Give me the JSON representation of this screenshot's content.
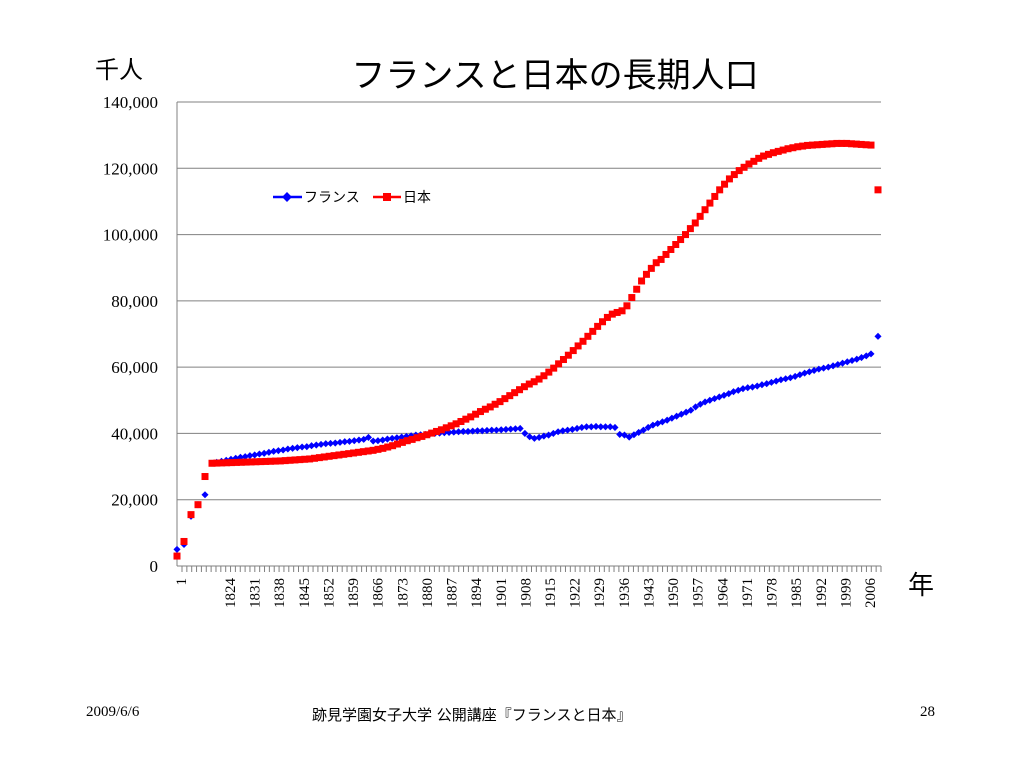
{
  "slide": {
    "unit_label": "千人",
    "year_label": "年",
    "footer_date": "2009/6/6",
    "footer_center": "跡見学園女子大学 公開講座『フランスと日本』",
    "page_number": "28"
  },
  "chart_data": {
    "type": "scatter",
    "title": "フランスと日本の長期人口",
    "ylim": [
      0,
      140000
    ],
    "yticks": [
      0,
      20000,
      40000,
      60000,
      80000,
      100000,
      120000,
      140000
    ],
    "ytick_labels": [
      "0",
      "20,000",
      "40,000",
      "60,000",
      "80,000",
      "100,000",
      "120,000",
      "140,000"
    ],
    "xtick_labels": [
      "1",
      "1824",
      "1831",
      "1838",
      "1845",
      "1852",
      "1859",
      "1866",
      "1873",
      "1880",
      "1887",
      "1894",
      "1901",
      "1908",
      "1915",
      "1922",
      "1929",
      "1936",
      "1943",
      "1950",
      "1957",
      "1964",
      "1971",
      "1978",
      "1985",
      "1992",
      "1999",
      "2006"
    ],
    "grid": true,
    "legend_position": "top-left inside",
    "series": [
      {
        "name": "フランス",
        "color": "#0000ff",
        "marker": "diamond",
        "early_values": [
          5000,
          6500,
          15000,
          18500,
          21500
        ],
        "values": [
          31000,
          31300,
          31600,
          31900,
          32200,
          32500,
          32800,
          33000,
          33300,
          33500,
          33800,
          34000,
          34300,
          34600,
          34800,
          35000,
          35300,
          35500,
          35700,
          35900,
          36000,
          36300,
          36500,
          36700,
          36900,
          37000,
          37100,
          37300,
          37500,
          37600,
          37800,
          38000,
          38200,
          38800,
          37700,
          37800,
          38000,
          38300,
          38500,
          38700,
          38900,
          39100,
          39300,
          39500,
          39600,
          39700,
          39900,
          40000,
          40100,
          40200,
          40300,
          40400,
          40500,
          40600,
          40600,
          40700,
          40800,
          40800,
          40900,
          41000,
          41000,
          41100,
          41200,
          41300,
          41400,
          41500,
          40000,
          39000,
          38500,
          38800,
          39200,
          39500,
          40000,
          40500,
          40800,
          41000,
          41200,
          41500,
          41800,
          42000,
          42000,
          42100,
          42000,
          42000,
          42000,
          41800,
          39700,
          39500,
          38900,
          39600,
          40300,
          41000,
          41800,
          42500,
          43000,
          43500,
          44000,
          44600,
          45200,
          45800,
          46400,
          47000,
          48000,
          48800,
          49500,
          50000,
          50500,
          51000,
          51500,
          52000,
          52600,
          53000,
          53500,
          53800,
          54000,
          54300,
          54700,
          55000,
          55400,
          55800,
          56200,
          56500,
          56800,
          57200,
          57700,
          58200,
          58600,
          59000,
          59400,
          59700,
          60000,
          60400,
          60800,
          61200,
          61600,
          62000,
          62400,
          62900,
          63400,
          64000
        ],
        "end_value": 69300
      },
      {
        "name": "日本",
        "color": "#ff0000",
        "marker": "square",
        "early_values": [
          3000,
          7400,
          15500,
          18500,
          27000
        ],
        "values": [
          31000,
          31050,
          31100,
          31150,
          31200,
          31250,
          31300,
          31350,
          31400,
          31450,
          31500,
          31550,
          31600,
          31650,
          31700,
          31800,
          31900,
          32000,
          32100,
          32200,
          32300,
          32500,
          32700,
          32900,
          33100,
          33300,
          33500,
          33700,
          33900,
          34100,
          34300,
          34500,
          34700,
          34900,
          35200,
          35500,
          35900,
          36300,
          36800,
          37300,
          37800,
          38200,
          38700,
          39100,
          39600,
          40100,
          40600,
          41100,
          41700,
          42300,
          42900,
          43600,
          44300,
          45000,
          45800,
          46600,
          47300,
          48000,
          48800,
          49600,
          50500,
          51400,
          52300,
          53200,
          54100,
          54900,
          55600,
          56400,
          57400,
          58500,
          59700,
          61000,
          62300,
          63600,
          65000,
          66400,
          67800,
          69300,
          70800,
          72300,
          73700,
          75000,
          76000,
          76500,
          77000,
          78500,
          81000,
          83500,
          86000,
          88000,
          89800,
          91500,
          92500,
          94000,
          95500,
          97000,
          98500,
          100000,
          101800,
          103500,
          105500,
          107500,
          109500,
          111500,
          113500,
          115200,
          116800,
          118100,
          119300,
          120300,
          121300,
          122100,
          123000,
          123700,
          124200,
          124700,
          125100,
          125500,
          125900,
          126200,
          126500,
          126700,
          126900,
          127000,
          127100,
          127200,
          127300,
          127400,
          127500,
          127500,
          127500,
          127400,
          127300,
          127200,
          127100,
          127000
        ],
        "end_value": 113500
      }
    ]
  }
}
